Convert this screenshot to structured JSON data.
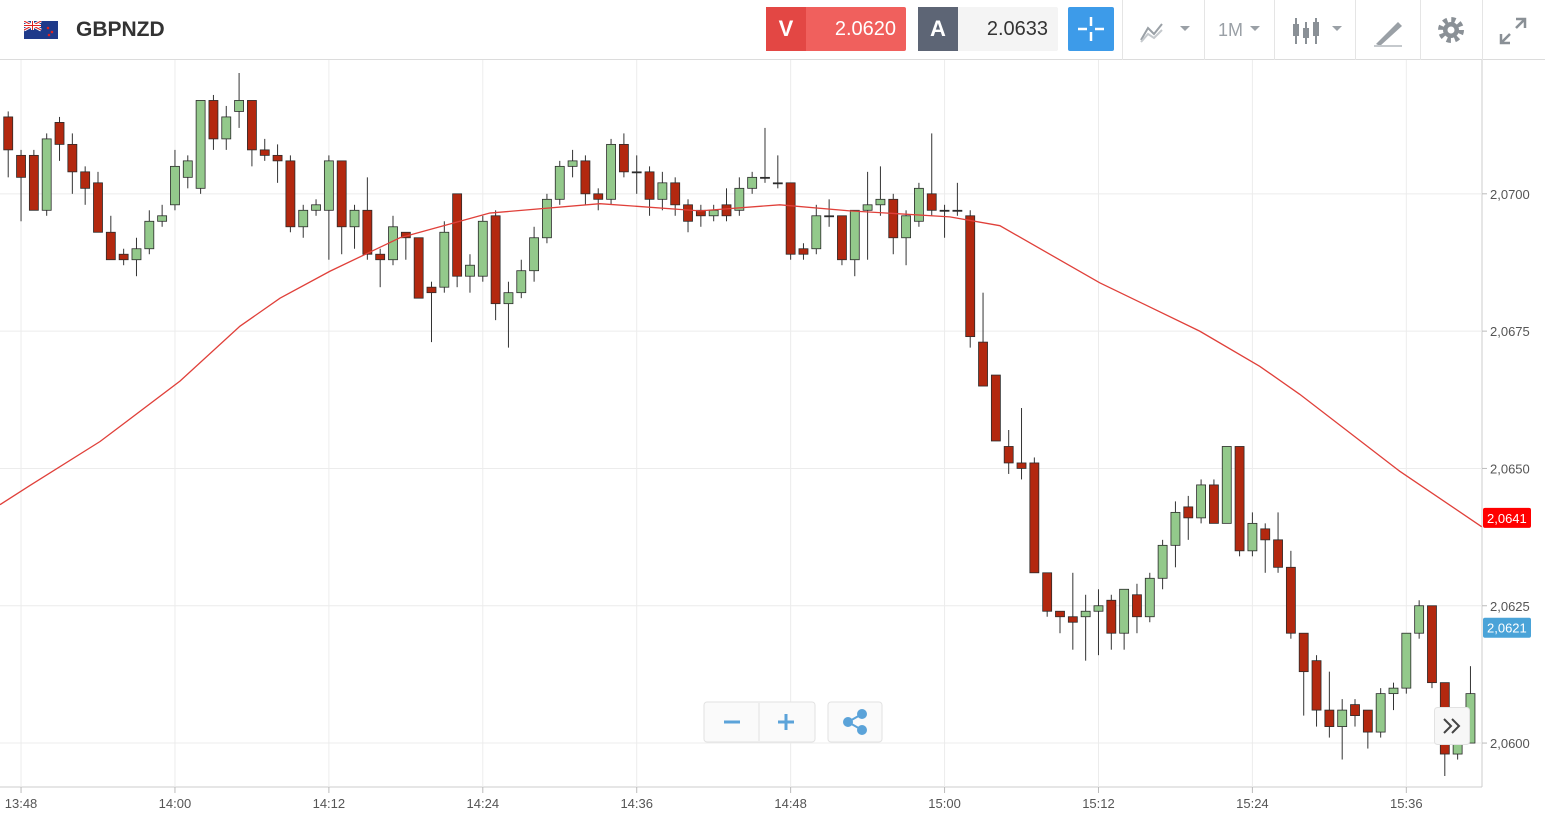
{
  "chart_data": {
    "type": "candlestick",
    "title": "GBPNZD",
    "toolbar": {
      "sell": "V",
      "sell_price": "2.0620",
      "buy": "A",
      "buy_price": "2.0633",
      "timeframe": "1M"
    },
    "up_color": "#93c98b",
    "down_color": "#b3280f",
    "xlim": [
      -1.64,
      113.9
    ],
    "ylim": [
      2.0592,
      2.0724
    ],
    "xticks": [
      {
        "value": 0,
        "label": "13:48"
      },
      {
        "value": 12,
        "label": "14:00"
      },
      {
        "value": 24,
        "label": "14:12"
      },
      {
        "value": 36,
        "label": "14:24"
      },
      {
        "value": 48,
        "label": "14:36"
      },
      {
        "value": 60,
        "label": "14:48"
      },
      {
        "value": 72,
        "label": "15:00"
      },
      {
        "value": 84,
        "label": "15:12"
      },
      {
        "value": 96,
        "label": "15:24"
      },
      {
        "value": 108,
        "label": "15:36"
      }
    ],
    "yticks": [
      {
        "value": 2.06,
        "label": "2,0600"
      },
      {
        "value": 2.0625,
        "label": "2,0625"
      },
      {
        "value": 2.065,
        "label": "2,0650"
      },
      {
        "value": 2.0675,
        "label": "2,0675"
      },
      {
        "value": 2.07,
        "label": "2,0700"
      }
    ],
    "grid": true,
    "x": [
      -1,
      0,
      1,
      2,
      3,
      4,
      5,
      6,
      7,
      8,
      9,
      10,
      11,
      12,
      13,
      14,
      15,
      16,
      17,
      18,
      19,
      20,
      21,
      22,
      23,
      24,
      25,
      26,
      27,
      28,
      29,
      30,
      31,
      32,
      33,
      34,
      35,
      36,
      37,
      38,
      39,
      40,
      41,
      42,
      43,
      44,
      45,
      46,
      47,
      48,
      49,
      50,
      51,
      52,
      53,
      54,
      55,
      56,
      57,
      58,
      59,
      60,
      61,
      62,
      63,
      64,
      65,
      66,
      67,
      68,
      69,
      70,
      71,
      72,
      73,
      74,
      75,
      76,
      77,
      78,
      79,
      80,
      81,
      82,
      83,
      84,
      85,
      86,
      87,
      88,
      89,
      90,
      91,
      92,
      93,
      94,
      95,
      96,
      97,
      98,
      99,
      100,
      101,
      102,
      103,
      104,
      105,
      106,
      107,
      108,
      109,
      110,
      111,
      112,
      113
    ],
    "ohlc": [
      [
        2.0714,
        2.0715,
        2.0703,
        2.0708
      ],
      [
        2.0707,
        2.0708,
        2.0695,
        2.0703
      ],
      [
        2.0707,
        2.0708,
        2.0697,
        2.0697
      ],
      [
        2.0697,
        2.0711,
        2.0696,
        2.071
      ],
      [
        2.0713,
        2.0714,
        2.0706,
        2.0709
      ],
      [
        2.0709,
        2.0711,
        2.07,
        2.0704
      ],
      [
        2.0704,
        2.0705,
        2.0698,
        2.0701
      ],
      [
        2.0702,
        2.0704,
        2.0693,
        2.0693
      ],
      [
        2.0693,
        2.0696,
        2.0688,
        2.0688
      ],
      [
        2.0689,
        2.069,
        2.0687,
        2.0688
      ],
      [
        2.0688,
        2.0692,
        2.0685,
        2.069
      ],
      [
        2.069,
        2.0697,
        2.0689,
        2.0695
      ],
      [
        2.0695,
        2.0698,
        2.0694,
        2.0696
      ],
      [
        2.0698,
        2.0708,
        2.0697,
        2.0705
      ],
      [
        2.0703,
        2.0707,
        2.0701,
        2.0706
      ],
      [
        2.0701,
        2.0717,
        2.07,
        2.0717
      ],
      [
        2.0717,
        2.0718,
        2.0708,
        2.071
      ],
      [
        2.071,
        2.0716,
        2.0708,
        2.0714
      ],
      [
        2.0715,
        2.0722,
        2.0712,
        2.0717
      ],
      [
        2.0717,
        2.0717,
        2.0705,
        2.0708
      ],
      [
        2.0708,
        2.071,
        2.0706,
        2.0707
      ],
      [
        2.0707,
        2.0709,
        2.0702,
        2.0706
      ],
      [
        2.0706,
        2.0707,
        2.0693,
        2.0694
      ],
      [
        2.0694,
        2.0698,
        2.0692,
        2.0697
      ],
      [
        2.0697,
        2.0699,
        2.0696,
        2.0698
      ],
      [
        2.0697,
        2.0707,
        2.0688,
        2.0706
      ],
      [
        2.0706,
        2.0706,
        2.0689,
        2.0694
      ],
      [
        2.0694,
        2.0698,
        2.069,
        2.0697
      ],
      [
        2.0697,
        2.0703,
        2.0688,
        2.0689
      ],
      [
        2.0689,
        2.069,
        2.0683,
        2.0688
      ],
      [
        2.0688,
        2.0696,
        2.0687,
        2.0694
      ],
      [
        2.0693,
        2.0693,
        2.0688,
        2.0692
      ],
      [
        2.0692,
        2.0692,
        2.0681,
        2.0681
      ],
      [
        2.0683,
        2.0684,
        2.0673,
        2.0682
      ],
      [
        2.0683,
        2.0695,
        2.0682,
        2.0693
      ],
      [
        2.07,
        2.07,
        2.0683,
        2.0685
      ],
      [
        2.0685,
        2.0689,
        2.0682,
        2.0687
      ],
      [
        2.0685,
        2.0696,
        2.0684,
        2.0695
      ],
      [
        2.0696,
        2.0697,
        2.0677,
        2.068
      ],
      [
        2.068,
        2.0684,
        2.0672,
        2.0682
      ],
      [
        2.0682,
        2.0688,
        2.0681,
        2.0686
      ],
      [
        2.0686,
        2.0694,
        2.0684,
        2.0692
      ],
      [
        2.0692,
        2.07,
        2.0691,
        2.0699
      ],
      [
        2.0699,
        2.0706,
        2.0698,
        2.0705
      ],
      [
        2.0705,
        2.0708,
        2.0703,
        2.0706
      ],
      [
        2.0706,
        2.0707,
        2.0698,
        2.07
      ],
      [
        2.07,
        2.0701,
        2.0697,
        2.0699
      ],
      [
        2.0699,
        2.071,
        2.0698,
        2.0709
      ],
      [
        2.0709,
        2.0711,
        2.0703,
        2.0704
      ],
      [
        2.0704,
        2.0707,
        2.07,
        2.0704
      ],
      [
        2.0704,
        2.0705,
        2.0696,
        2.0699
      ],
      [
        2.0699,
        2.0704,
        2.0697,
        2.0702
      ],
      [
        2.0702,
        2.0703,
        2.0696,
        2.0698
      ],
      [
        2.0698,
        2.0699,
        2.0693,
        2.0695
      ],
      [
        2.0697,
        2.0698,
        2.0694,
        2.0696
      ],
      [
        2.0696,
        2.0698,
        2.0695,
        2.0697
      ],
      [
        2.0698,
        2.0701,
        2.0695,
        2.0696
      ],
      [
        2.0697,
        2.0703,
        2.0696,
        2.0701
      ],
      [
        2.0701,
        2.0704,
        2.07,
        2.0703
      ],
      [
        2.0703,
        2.0712,
        2.0702,
        2.0703
      ],
      [
        2.0702,
        2.0707,
        2.0701,
        2.0702
      ],
      [
        2.0702,
        2.0702,
        2.0688,
        2.0689
      ],
      [
        2.069,
        2.0691,
        2.0688,
        2.0689
      ],
      [
        2.069,
        2.0698,
        2.0689,
        2.0696
      ],
      [
        2.0696,
        2.0699,
        2.0694,
        2.0696
      ],
      [
        2.0696,
        2.0696,
        2.0687,
        2.0688
      ],
      [
        2.0688,
        2.0697,
        2.0685,
        2.0697
      ],
      [
        2.0697,
        2.0704,
        2.0688,
        2.0698
      ],
      [
        2.0698,
        2.0705,
        2.0696,
        2.0699
      ],
      [
        2.0699,
        2.07,
        2.0689,
        2.0692
      ],
      [
        2.0692,
        2.0697,
        2.0687,
        2.0696
      ],
      [
        2.0695,
        2.0702,
        2.0694,
        2.0701
      ],
      [
        2.07,
        2.0711,
        2.0696,
        2.0697
      ],
      [
        2.0697,
        2.0698,
        2.0692,
        2.0697
      ],
      [
        2.0697,
        2.0702,
        2.0696,
        2.0697
      ],
      [
        2.0696,
        2.0697,
        2.0672,
        2.0674
      ],
      [
        2.0673,
        2.0682,
        2.0665,
        2.0665
      ],
      [
        2.0667,
        2.0667,
        2.0655,
        2.0655
      ],
      [
        2.0654,
        2.0657,
        2.0649,
        2.0651
      ],
      [
        2.0651,
        2.0661,
        2.0648,
        2.065
      ],
      [
        2.0651,
        2.0652,
        2.0631,
        2.0631
      ],
      [
        2.0631,
        2.0631,
        2.0623,
        2.0624
      ],
      [
        2.0624,
        2.0624,
        2.062,
        2.0623
      ],
      [
        2.0623,
        2.0631,
        2.0617,
        2.0622
      ],
      [
        2.0623,
        2.0627,
        2.0615,
        2.0624
      ],
      [
        2.0624,
        2.0628,
        2.0616,
        2.0625
      ],
      [
        2.0626,
        2.0627,
        2.0617,
        2.062
      ],
      [
        2.062,
        2.0628,
        2.0617,
        2.0628
      ],
      [
        2.0627,
        2.0629,
        2.062,
        2.0623
      ],
      [
        2.0623,
        2.0631,
        2.0622,
        2.063
      ],
      [
        2.063,
        2.0637,
        2.0628,
        2.0636
      ],
      [
        2.0636,
        2.0644,
        2.0632,
        2.0642
      ],
      [
        2.0643,
        2.0645,
        2.0637,
        2.0641
      ],
      [
        2.0641,
        2.0648,
        2.064,
        2.0647
      ],
      [
        2.0647,
        2.0648,
        2.064,
        2.064
      ],
      [
        2.064,
        2.0654,
        2.064,
        2.0654
      ],
      [
        2.0654,
        2.0654,
        2.0634,
        2.0635
      ],
      [
        2.0635,
        2.0642,
        2.0634,
        2.064
      ],
      [
        2.0639,
        2.064,
        2.0631,
        2.0637
      ],
      [
        2.0637,
        2.0642,
        2.0631,
        2.0632
      ],
      [
        2.0632,
        2.0635,
        2.0619,
        2.062
      ],
      [
        2.062,
        2.062,
        2.0605,
        2.0613
      ],
      [
        2.0615,
        2.0616,
        2.0603,
        2.0606
      ],
      [
        2.0606,
        2.0613,
        2.0601,
        2.0603
      ],
      [
        2.0603,
        2.0608,
        2.0597,
        2.0606
      ],
      [
        2.0607,
        2.0608,
        2.0603,
        2.0605
      ],
      [
        2.0606,
        2.0606,
        2.0599,
        2.0602
      ],
      [
        2.0602,
        2.061,
        2.0601,
        2.0609
      ],
      [
        2.0609,
        2.0611,
        2.0606,
        2.061
      ],
      [
        2.061,
        2.062,
        2.0609,
        2.062
      ],
      [
        2.062,
        2.0626,
        2.0619,
        2.0625
      ],
      [
        2.0625,
        2.0625,
        2.061,
        2.0611
      ],
      [
        2.0611,
        2.0611,
        2.0594,
        2.0598
      ],
      [
        2.0598,
        2.0602,
        2.0597,
        2.06
      ],
      [
        2.06,
        2.0614,
        2.06,
        2.0609
      ]
    ],
    "line": {
      "color": "#e0403a",
      "x": [
        -1.64,
        0.7,
        6.16,
        12.39,
        17.07,
        20.19,
        24.08,
        29.54,
        36.55,
        45.13,
        52.92,
        59.16,
        64.61,
        72.41,
        76.31,
        84.1,
        91.89,
        96.57,
        99.69,
        107.48,
        113.87
      ],
      "values": [
        2.06434,
        2.06469,
        2.06549,
        2.06659,
        2.06759,
        2.0681,
        2.06859,
        2.0692,
        2.06965,
        2.06982,
        2.06969,
        2.0698,
        2.06969,
        2.06958,
        2.06942,
        2.06838,
        2.0675,
        2.06686,
        2.06635,
        2.06495,
        2.06394
      ]
    },
    "price_labels": [
      {
        "value": 2.0641,
        "label": "2,0641",
        "color": "#ff0000"
      },
      {
        "value": 2.0621,
        "label": "2,0621",
        "color": "#4aa3d8"
      }
    ]
  }
}
